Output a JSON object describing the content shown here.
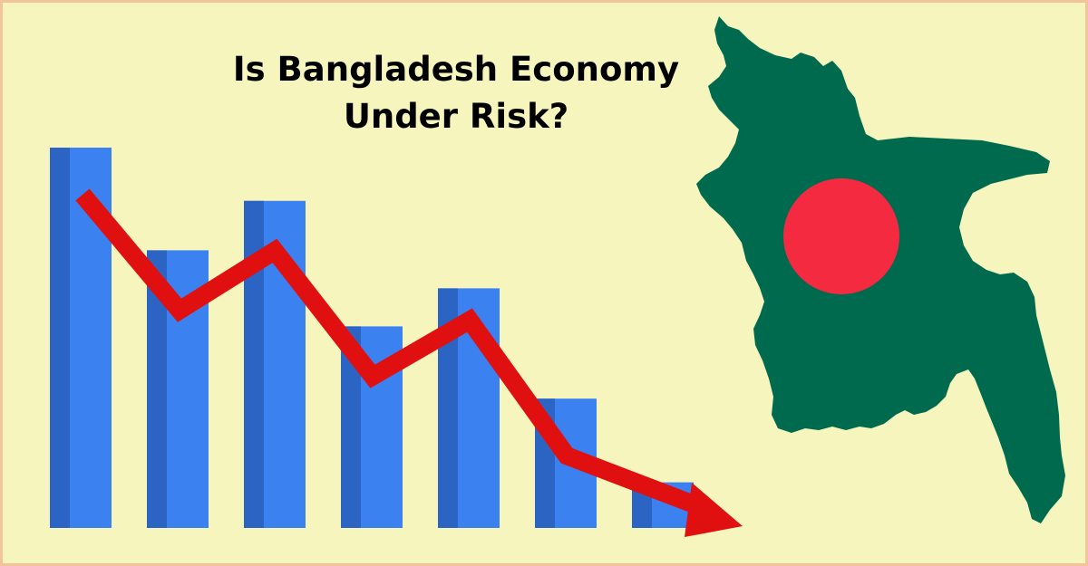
{
  "headline": {
    "line1": "Is Bangladesh Economy",
    "line2": "Under Risk?"
  },
  "colors": {
    "background": "#f6f5bd",
    "frame": "#f2c49a",
    "bar": "#3b82f0",
    "bar_shade": "#2c64c4",
    "trend_arrow": "#e01010",
    "map_green": "#006a4e",
    "map_red_disc": "#f42a41"
  },
  "illustration": {
    "bars": [
      {
        "level": 1.0
      },
      {
        "level": 0.73
      },
      {
        "level": 0.86
      },
      {
        "level": 0.53
      },
      {
        "level": 0.63
      },
      {
        "level": 0.34
      },
      {
        "level": 0.12
      }
    ],
    "trend": {
      "direction": "down",
      "levels": [
        0.94,
        0.59,
        0.77,
        0.39,
        0.56,
        0.15,
        0.0
      ]
    },
    "map_icon": "bangladesh-map-flag-icon"
  }
}
